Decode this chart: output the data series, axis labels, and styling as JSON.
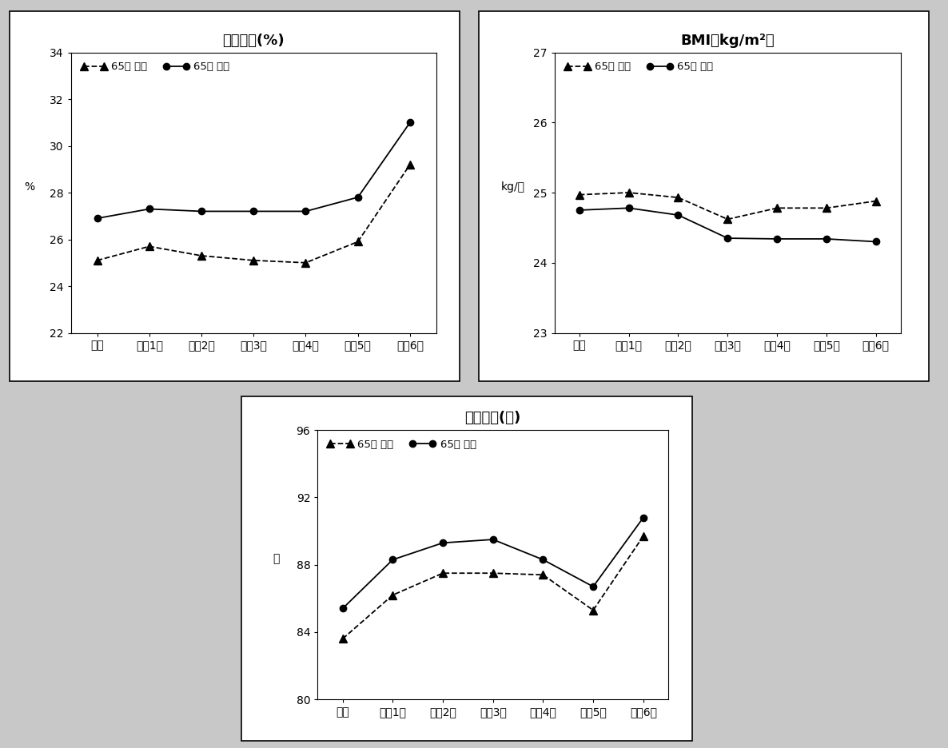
{
  "x_labels": [
    "기초",
    "추적1기",
    "추적2기",
    "추적3기",
    "추적4기",
    "추적5기",
    "추적6기"
  ],
  "chart1": {
    "title": "체지방률(%)",
    "ylabel": "%",
    "ylim": [
      22,
      34
    ],
    "yticks": [
      22,
      24,
      26,
      28,
      30,
      32,
      34
    ],
    "series_under65": [
      25.1,
      25.7,
      25.3,
      25.1,
      25.0,
      25.9,
      29.2
    ],
    "series_over65": [
      26.9,
      27.3,
      27.2,
      27.2,
      27.2,
      27.8,
      31.0
    ]
  },
  "chart2": {
    "title": "BMI（kg/m²）",
    "ylabel": "kg/㎡",
    "ylim": [
      23,
      27
    ],
    "yticks": [
      23,
      24,
      25,
      26,
      27
    ],
    "series_under65": [
      24.97,
      25.0,
      24.93,
      24.62,
      24.78,
      24.78,
      24.88
    ],
    "series_over65": [
      24.75,
      24.78,
      24.68,
      24.35,
      24.34,
      24.34,
      24.3
    ]
  },
  "chart3": {
    "title": "허리둘레(㎢)",
    "ylabel": "㎢",
    "ylim": [
      80,
      96
    ],
    "yticks": [
      80,
      84,
      88,
      92,
      96
    ],
    "series_under65": [
      83.6,
      86.2,
      87.5,
      87.5,
      87.4,
      85.3,
      89.7
    ],
    "series_over65": [
      85.4,
      88.3,
      89.3,
      89.5,
      88.3,
      86.7,
      90.8
    ]
  },
  "legend_under65": "65세 미만",
  "legend_over65": "65세 이상"
}
